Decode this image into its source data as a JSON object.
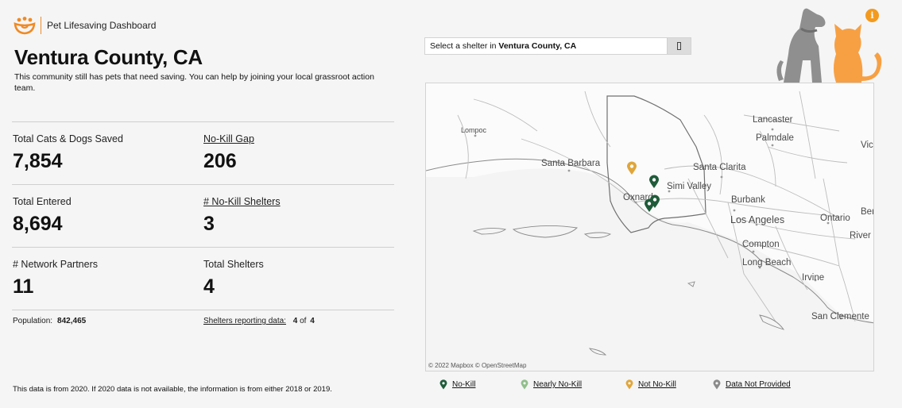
{
  "header": {
    "brand_title": "Pet Lifesaving Dashboard",
    "county": "Ventura County, CA",
    "description": "This community still has pets that need saving. You can help by joining your local grassroot action team."
  },
  "stats": {
    "total_saved": {
      "label": "Total Cats & Dogs Saved",
      "value": "7,854"
    },
    "no_kill_gap": {
      "label": "No-Kill Gap",
      "value": "206"
    },
    "total_entered": {
      "label": "Total Entered",
      "value": "8,694"
    },
    "no_kill_shelters": {
      "label": "# No-Kill Shelters",
      "value": "3"
    },
    "network_partners": {
      "label": "# Network Partners",
      "value": "11"
    },
    "total_shelters": {
      "label": "Total Shelters",
      "value": "4"
    }
  },
  "population": {
    "label": "Population:",
    "value": "842,465"
  },
  "shelters_reporting": {
    "label": "Shelters reporting data:",
    "count": "4",
    "of": "of",
    "total": "4"
  },
  "footnote": "This data is from 2020. If 2020 data is not available, the information is from either 2018 or 2019.",
  "shelter_select": {
    "prefix": "Select a shelter in",
    "county": "Ventura County, CA"
  },
  "map": {
    "attribution": "© 2022 Mapbox © OpenStreetMap",
    "places": {
      "lompoc": "Lompoc",
      "santa_barbara": "Santa Barbara",
      "oxnard": "Oxnard",
      "simi_valley": "Simi Valley",
      "santa_clarita": "Santa Clarita",
      "lancaster": "Lancaster",
      "palmdale": "Palmdale",
      "victorville": "Vic",
      "burbank": "Burbank",
      "los_angeles": "Los Angeles",
      "ontario": "Ontario",
      "san_bernardino": "Ber",
      "riverside": "River",
      "compton": "Compton",
      "long_beach": "Long Beach",
      "irvine": "Irvine",
      "san_clemente": "San Clemente"
    },
    "marker_colors": {
      "no_kill": "#1f5c3a",
      "nearly_no_kill": "#8fbf8a",
      "not_no_kill": "#e0a63a",
      "data_not_provided": "#8a8a8a"
    }
  },
  "legend": {
    "no_kill": "No-Kill",
    "nearly_no_kill": "Nearly No-Kill",
    "not_no_kill": "Not No-Kill",
    "data_not_provided": "Data Not Provided"
  },
  "icons": {
    "logo": "paw-heart-logo-icon",
    "info": "info-icon",
    "select": "dropdown-toggle-icon",
    "pets": "dog-and-cat-illustration"
  },
  "colors": {
    "brand_orange": "#f39a1e",
    "dog_gray": "#8f8f8f",
    "cat_orange": "#f7a043"
  },
  "info_glyph": "i"
}
